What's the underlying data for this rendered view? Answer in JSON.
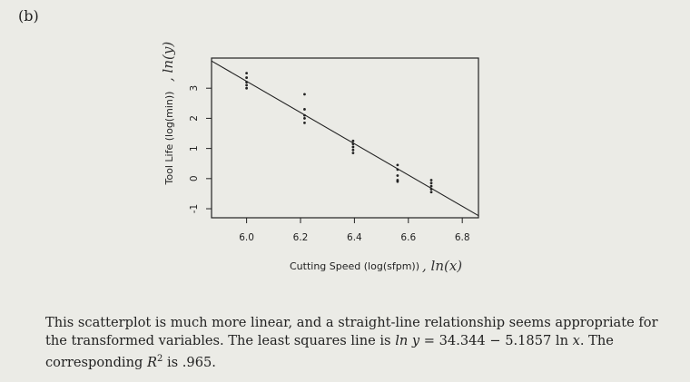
{
  "part_label": "(b)",
  "caption": {
    "line1": "This scatterplot is much more linear, and a straight-line relationship seems appropriate for",
    "line2_a": "the transformed variables. The least squares line is",
    "line2_lhs": "ln y",
    "line2_b": "= 34.344 − 5.1857 ln",
    "line2_x": "x",
    "line2_c": ". The",
    "line3_a": "corresponding",
    "line3_r": "R",
    "line3_sup": "2",
    "line3_b": "is .965."
  },
  "chart_data": {
    "type": "scatter",
    "xlabel": "Cutting Speed (log(sfpm))",
    "ylabel": "Tool Life (log(min))",
    "xlabel_handwritten": ", ln(x)",
    "ylabel_handwritten": ", ln(y)",
    "xlim": [
      5.87,
      6.86
    ],
    "ylim": [
      -1.3,
      4.0
    ],
    "xticks": [
      "6.0",
      "6.2",
      "6.4",
      "6.6",
      "6.8"
    ],
    "xtick_values": [
      6.0,
      6.2,
      6.4,
      6.6,
      6.8
    ],
    "yticks": [
      "-1",
      "0",
      "1",
      "2",
      "3"
    ],
    "ytick_values": [
      -1,
      0,
      1,
      2,
      3
    ],
    "grid": false,
    "line": {
      "intercept": 34.344,
      "slope": -5.1857
    },
    "points": [
      {
        "x": 6.0,
        "y": 3.5
      },
      {
        "x": 6.0,
        "y": 3.35
      },
      {
        "x": 6.0,
        "y": 3.2
      },
      {
        "x": 6.0,
        "y": 3.1
      },
      {
        "x": 6.0,
        "y": 3.0
      },
      {
        "x": 6.215,
        "y": 2.8
      },
      {
        "x": 6.215,
        "y": 2.3
      },
      {
        "x": 6.215,
        "y": 2.1
      },
      {
        "x": 6.215,
        "y": 2.0
      },
      {
        "x": 6.215,
        "y": 1.85
      },
      {
        "x": 6.395,
        "y": 1.25
      },
      {
        "x": 6.395,
        "y": 1.15
      },
      {
        "x": 6.395,
        "y": 1.05
      },
      {
        "x": 6.395,
        "y": 0.95
      },
      {
        "x": 6.395,
        "y": 0.85
      },
      {
        "x": 6.56,
        "y": 0.45
      },
      {
        "x": 6.56,
        "y": 0.3
      },
      {
        "x": 6.56,
        "y": 0.1
      },
      {
        "x": 6.56,
        "y": -0.05
      },
      {
        "x": 6.56,
        "y": -0.1
      },
      {
        "x": 6.685,
        "y": -0.05
      },
      {
        "x": 6.685,
        "y": -0.15
      },
      {
        "x": 6.685,
        "y": -0.25
      },
      {
        "x": 6.685,
        "y": -0.35
      },
      {
        "x": 6.685,
        "y": -0.45
      }
    ]
  }
}
